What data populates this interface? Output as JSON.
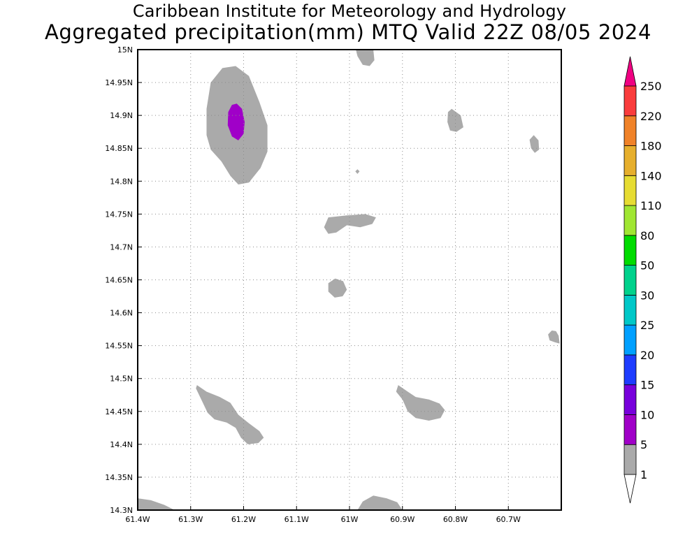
{
  "title": "Caribbean Institute for Meteorology and Hydrology",
  "subtitle": "Aggregated precipitation(mm) MTQ Valid 22Z 08/05 2024",
  "chart_data": {
    "type": "heatmap",
    "xlim": [
      -61.4,
      -60.6
    ],
    "ylim": [
      14.3,
      15.0
    ],
    "x_ticks": [
      "61.4W",
      "61.3W",
      "61.2W",
      "61.1W",
      "61W",
      "60.9W",
      "60.8W",
      "60.7W"
    ],
    "y_ticks": [
      "14.3N",
      "14.35N",
      "14.4N",
      "14.45N",
      "14.5N",
      "14.55N",
      "14.6N",
      "14.65N",
      "14.7N",
      "14.75N",
      "14.8N",
      "14.85N",
      "14.9N",
      "14.95N",
      "15N"
    ],
    "grid": true,
    "colorbar": {
      "levels": [
        "1",
        "5",
        "10",
        "15",
        "20",
        "25",
        "30",
        "50",
        "80",
        "110",
        "140",
        "180",
        "220",
        "250"
      ],
      "colors": [
        "#aaaaaa",
        "#a000c8",
        "#7800dc",
        "#1e3cff",
        "#00a0ff",
        "#00c8c8",
        "#00d28c",
        "#00dc00",
        "#a0e632",
        "#e6dc32",
        "#e6af2d",
        "#f08228",
        "#fa3c3c",
        "#f00082"
      ]
    },
    "regions": [
      {
        "label": "1",
        "points": [
          [
            -61.215,
            14.975
          ],
          [
            -61.19,
            14.96
          ],
          [
            -61.17,
            14.92
          ],
          [
            -61.155,
            14.885
          ],
          [
            -61.155,
            14.845
          ],
          [
            -61.168,
            14.82
          ],
          [
            -61.19,
            14.798
          ],
          [
            -61.21,
            14.795
          ],
          [
            -61.225,
            14.808
          ],
          [
            -61.242,
            14.83
          ],
          [
            -61.262,
            14.848
          ],
          [
            -61.27,
            14.87
          ],
          [
            -61.27,
            14.91
          ],
          [
            -61.262,
            14.95
          ],
          [
            -61.24,
            14.972
          ]
        ]
      },
      {
        "label": "5",
        "points": [
          [
            -61.213,
            14.918
          ],
          [
            -61.203,
            14.91
          ],
          [
            -61.198,
            14.89
          ],
          [
            -61.2,
            14.872
          ],
          [
            -61.21,
            14.862
          ],
          [
            -61.222,
            14.868
          ],
          [
            -61.23,
            14.885
          ],
          [
            -61.229,
            14.905
          ],
          [
            -61.222,
            14.916
          ]
        ]
      },
      {
        "label": "1",
        "points": [
          [
            -60.97,
            15.0
          ],
          [
            -60.955,
            15.0
          ],
          [
            -60.953,
            14.984
          ],
          [
            -60.962,
            14.975
          ],
          [
            -60.975,
            14.977
          ],
          [
            -60.985,
            14.99
          ],
          [
            -60.988,
            15.0
          ]
        ]
      },
      {
        "label": "1",
        "points": [
          [
            -60.807,
            14.91
          ],
          [
            -60.79,
            14.9
          ],
          [
            -60.785,
            14.882
          ],
          [
            -60.798,
            14.875
          ],
          [
            -60.81,
            14.877
          ],
          [
            -60.815,
            14.89
          ],
          [
            -60.814,
            14.905
          ]
        ]
      },
      {
        "label": "1",
        "points": [
          [
            -60.652,
            14.87
          ],
          [
            -60.643,
            14.862
          ],
          [
            -60.642,
            14.848
          ],
          [
            -60.65,
            14.843
          ],
          [
            -60.657,
            14.85
          ],
          [
            -60.66,
            14.863
          ]
        ]
      },
      {
        "label": "1",
        "points": [
          [
            -61.04,
            14.745
          ],
          [
            -61.005,
            14.748
          ],
          [
            -60.97,
            14.75
          ],
          [
            -60.95,
            14.745
          ],
          [
            -60.957,
            14.735
          ],
          [
            -60.98,
            14.73
          ],
          [
            -61.005,
            14.733
          ],
          [
            -61.025,
            14.722
          ],
          [
            -61.04,
            14.72
          ],
          [
            -61.048,
            14.73
          ]
        ]
      },
      {
        "label": "1",
        "points": [
          [
            -61.027,
            14.652
          ],
          [
            -61.012,
            14.648
          ],
          [
            -61.005,
            14.635
          ],
          [
            -61.013,
            14.625
          ],
          [
            -61.028,
            14.623
          ],
          [
            -61.04,
            14.632
          ],
          [
            -61.04,
            14.645
          ]
        ]
      },
      {
        "label": "1",
        "points": [
          [
            -60.61,
            14.572
          ],
          [
            -60.605,
            14.565
          ],
          [
            -60.603,
            14.553
          ],
          [
            -60.612,
            14.555
          ],
          [
            -60.622,
            14.558
          ],
          [
            -60.625,
            14.567
          ],
          [
            -60.618,
            14.573
          ]
        ]
      },
      {
        "label": "1",
        "points": [
          [
            -61.288,
            14.49
          ],
          [
            -61.27,
            14.48
          ],
          [
            -61.245,
            14.472
          ],
          [
            -61.225,
            14.463
          ],
          [
            -61.21,
            14.445
          ],
          [
            -61.19,
            14.432
          ],
          [
            -61.17,
            14.42
          ],
          [
            -61.162,
            14.41
          ],
          [
            -61.172,
            14.402
          ],
          [
            -61.192,
            14.4
          ],
          [
            -61.205,
            14.41
          ],
          [
            -61.215,
            14.425
          ],
          [
            -61.232,
            14.433
          ],
          [
            -61.255,
            14.438
          ],
          [
            -61.268,
            14.448
          ],
          [
            -61.278,
            14.465
          ],
          [
            -61.29,
            14.485
          ]
        ]
      },
      {
        "label": "1",
        "points": [
          [
            -60.908,
            14.49
          ],
          [
            -60.89,
            14.48
          ],
          [
            -60.875,
            14.472
          ],
          [
            -60.85,
            14.468
          ],
          [
            -60.83,
            14.462
          ],
          [
            -60.82,
            14.452
          ],
          [
            -60.828,
            14.44
          ],
          [
            -60.85,
            14.436
          ],
          [
            -60.875,
            14.44
          ],
          [
            -60.89,
            14.45
          ],
          [
            -60.9,
            14.468
          ],
          [
            -60.912,
            14.48
          ]
        ]
      },
      {
        "label": "1",
        "points": [
          [
            -61.4,
            14.318
          ],
          [
            -61.375,
            14.315
          ],
          [
            -61.35,
            14.308
          ],
          [
            -61.33,
            14.3
          ],
          [
            -61.4,
            14.3
          ]
        ]
      },
      {
        "label": "1",
        "points": [
          [
            -60.985,
            14.3
          ],
          [
            -60.975,
            14.313
          ],
          [
            -60.955,
            14.322
          ],
          [
            -60.93,
            14.318
          ],
          [
            -60.91,
            14.312
          ],
          [
            -60.9,
            14.3
          ]
        ]
      },
      {
        "label": "1",
        "points": [
          [
            -60.985,
            14.818
          ],
          [
            -60.981,
            14.815
          ],
          [
            -60.985,
            14.811
          ],
          [
            -60.989,
            14.815
          ]
        ]
      }
    ]
  }
}
